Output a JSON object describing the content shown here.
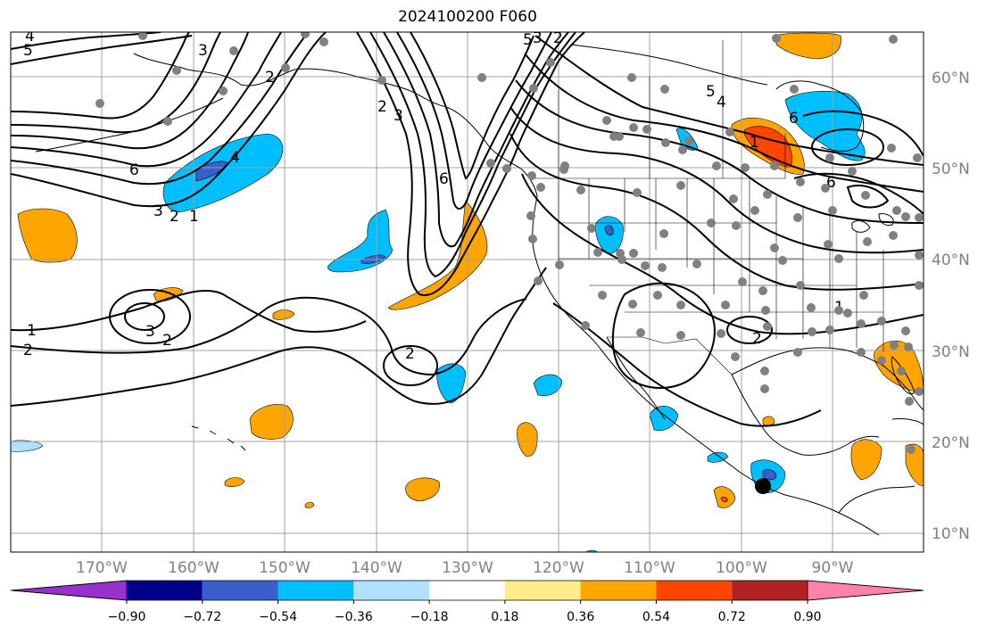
{
  "title": "2024100200 F060",
  "latitude_labels": [
    "60°N",
    "50°N",
    "40°N",
    "30°N",
    "20°N",
    "10°N"
  ],
  "longitude_labels": [
    "170°W",
    "160°W",
    "150°W",
    "140°W",
    "130°W",
    "120°W",
    "110°W",
    "100°W",
    "90°W"
  ],
  "colorbar": {
    "tick_labels": [
      "−0.90",
      "−0.72",
      "−0.54",
      "−0.36",
      "−0.18",
      "0.18",
      "0.36",
      "0.54",
      "0.72",
      "0.90"
    ],
    "colors": [
      "#9932CC",
      "#00008B",
      "#3A5FCD",
      "#00BFFF",
      "#B0E2FF",
      "#FFFFFF",
      "#FFEC8B",
      "#FFA500",
      "#FF4500",
      "#B22222",
      "#FF82AB"
    ]
  },
  "contour_labels": [
    "5",
    "4",
    "3",
    "2",
    "6",
    "4",
    "3",
    "2",
    "1",
    "1",
    "2",
    "3",
    "2",
    "2",
    "2",
    "3",
    "6",
    "5",
    "6",
    "5",
    "4",
    "6",
    "2",
    "1",
    "3",
    "2",
    "1"
  ],
  "colors": {
    "contour": "#000000",
    "grid": "#a0a0a0",
    "station": "#808080"
  }
}
